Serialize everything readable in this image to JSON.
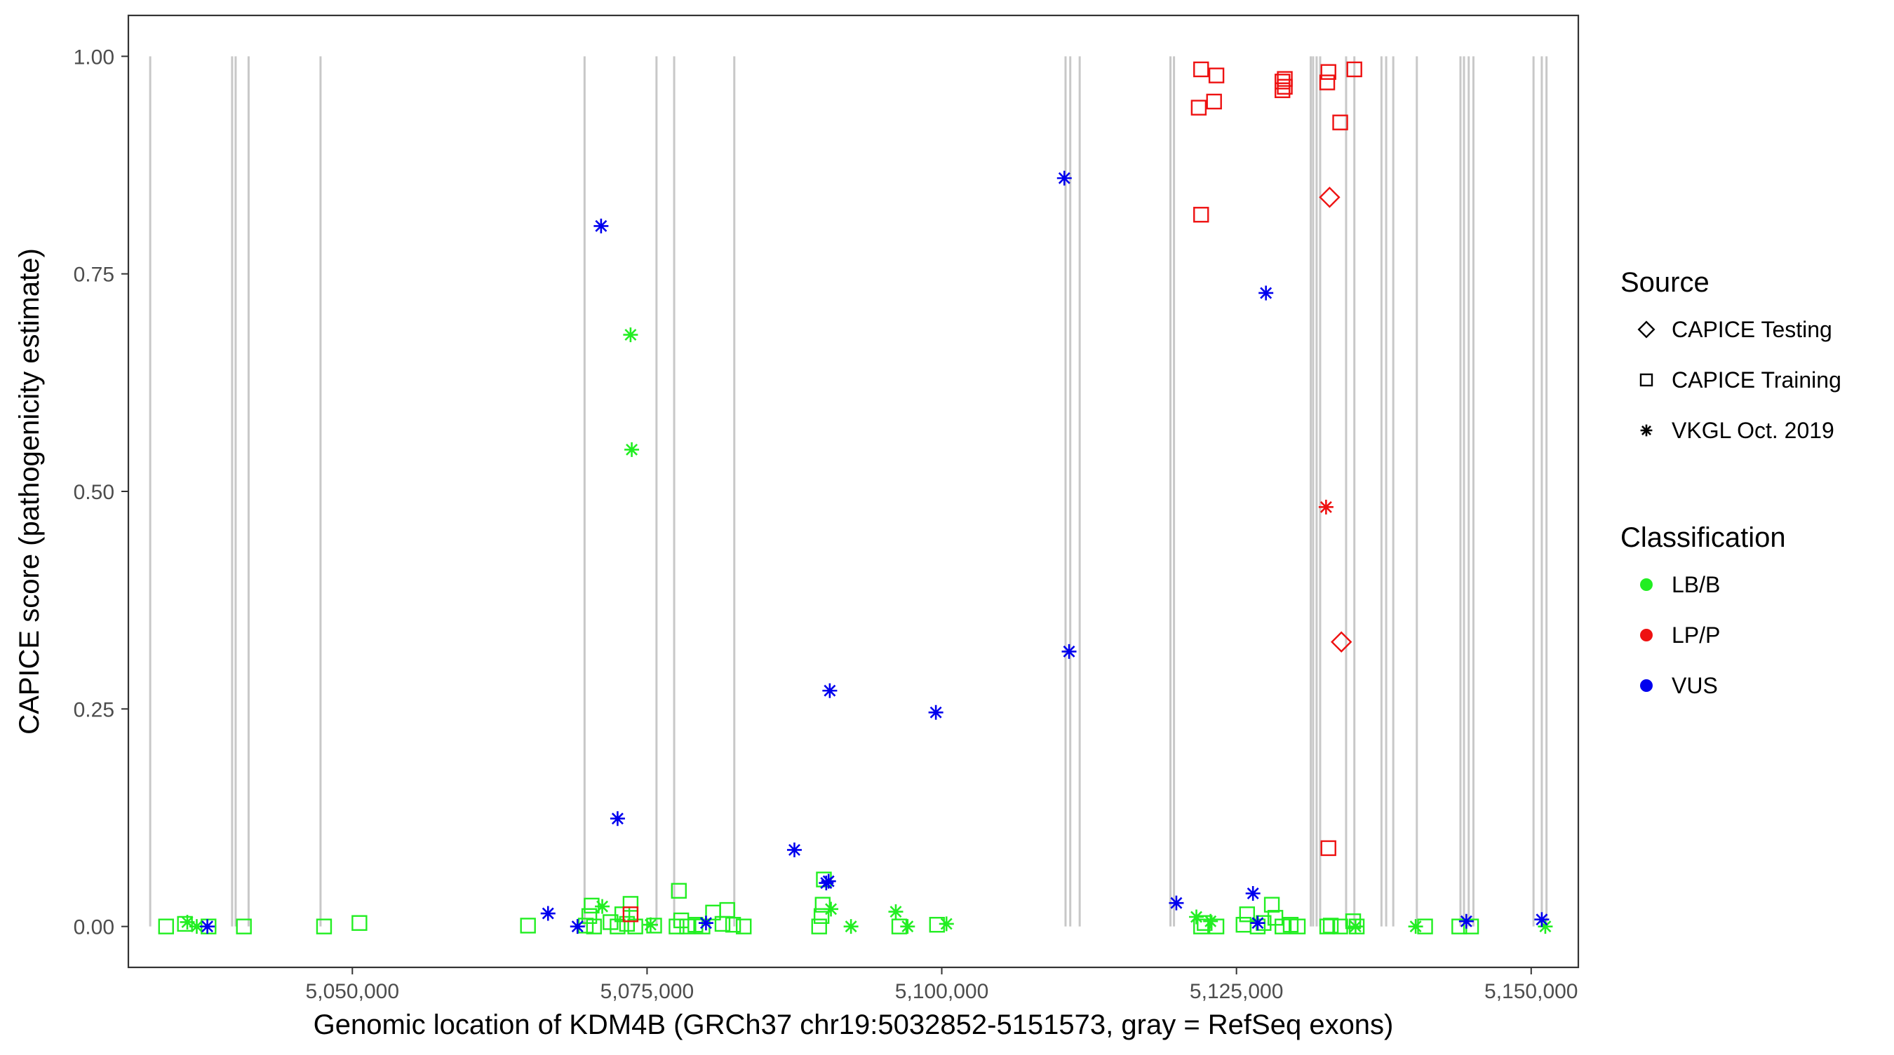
{
  "chart_data": {
    "type": "scatter",
    "xlabel": "Genomic location of KDM4B (GRCh37 chr19:5032852-5151573, gray = RefSeq exons)",
    "ylabel": "CAPICE score (pathogenicity estimate)",
    "xlim": [
      5031000,
      5154000
    ],
    "ylim": [
      -0.047,
      1.047
    ],
    "grid": false,
    "x_ticks": [
      {
        "value": 5050000,
        "label": "5,050,000"
      },
      {
        "value": 5075000,
        "label": "5,075,000"
      },
      {
        "value": 5100000,
        "label": "5,100,000"
      },
      {
        "value": 5125000,
        "label": "5,125,000"
      },
      {
        "value": 5150000,
        "label": "5,150,000"
      }
    ],
    "y_ticks": [
      {
        "value": 0.0,
        "label": "0.00"
      },
      {
        "value": 0.25,
        "label": "0.25"
      },
      {
        "value": 0.5,
        "label": "0.50"
      },
      {
        "value": 0.75,
        "label": "0.75"
      },
      {
        "value": 1.0,
        "label": "1.00"
      }
    ],
    "exon_lines": [
      5032852,
      5039800,
      5040100,
      5041200,
      5047300,
      5069700,
      5075800,
      5077300,
      5082400,
      5110500,
      5110900,
      5111700,
      5119400,
      5119700,
      5131300,
      5131500,
      5131800,
      5132100,
      5134300,
      5135000,
      5137300,
      5137700,
      5138300,
      5140300,
      5144000,
      5144300,
      5144700,
      5145100,
      5150200,
      5150900,
      5151300
    ],
    "exon_color": "#c8c8c8",
    "legend": {
      "position": "right",
      "source_title": "Source",
      "source_items": [
        {
          "label": "CAPICE Testing",
          "shape": "diamond"
        },
        {
          "label": "CAPICE Training",
          "shape": "square"
        },
        {
          "label": "VKGL Oct. 2019",
          "shape": "star"
        }
      ],
      "class_title": "Classification",
      "class_items": [
        {
          "label": "LB/B",
          "color": "#22ee22"
        },
        {
          "label": "LP/P",
          "color": "#ee1111"
        },
        {
          "label": "VUS",
          "color": "#0000ee"
        }
      ]
    },
    "series": [
      {
        "source": "CAPICE Training",
        "classification": "LB/B",
        "points": [
          [
            5034200,
            0.0
          ],
          [
            5035800,
            0.003
          ],
          [
            5037800,
            0.0
          ],
          [
            5040800,
            0.0
          ],
          [
            5047600,
            0.0
          ],
          [
            5050600,
            0.004
          ],
          [
            5064900,
            0.001
          ],
          [
            5069800,
            0.001
          ],
          [
            5070100,
            0.012
          ],
          [
            5070300,
            0.024
          ],
          [
            5070500,
            0.0
          ],
          [
            5071900,
            0.005
          ],
          [
            5072500,
            0.0
          ],
          [
            5072900,
            0.014
          ],
          [
            5073300,
            0.003
          ],
          [
            5073600,
            0.026
          ],
          [
            5074000,
            0.0
          ],
          [
            5075600,
            0.001
          ],
          [
            5077500,
            0.0
          ],
          [
            5077700,
            0.041
          ],
          [
            5077900,
            0.007
          ],
          [
            5078400,
            0.0
          ],
          [
            5079100,
            0.002
          ],
          [
            5079700,
            0.0
          ],
          [
            5080600,
            0.016
          ],
          [
            5081400,
            0.003
          ],
          [
            5081800,
            0.019
          ],
          [
            5082300,
            0.002
          ],
          [
            5083200,
            0.0
          ],
          [
            5089600,
            0.0
          ],
          [
            5089800,
            0.012
          ],
          [
            5089900,
            0.025
          ],
          [
            5090000,
            0.054
          ],
          [
            5096400,
            0.0
          ],
          [
            5099600,
            0.002
          ],
          [
            5122000,
            0.0
          ],
          [
            5122300,
            0.004
          ],
          [
            5123300,
            0.0
          ],
          [
            5125600,
            0.002
          ],
          [
            5125900,
            0.014
          ],
          [
            5126800,
            0.0
          ],
          [
            5127300,
            0.004
          ],
          [
            5128000,
            0.025
          ],
          [
            5128300,
            0.01
          ],
          [
            5128900,
            0.0
          ],
          [
            5129600,
            0.002
          ],
          [
            5130200,
            0.0
          ],
          [
            5132700,
            0.0
          ],
          [
            5133000,
            0.001
          ],
          [
            5133800,
            0.0
          ],
          [
            5134900,
            0.006
          ],
          [
            5135200,
            0.0
          ],
          [
            5141000,
            0.0
          ],
          [
            5143900,
            0.0
          ],
          [
            5144900,
            0.0
          ]
        ]
      },
      {
        "source": "CAPICE Training",
        "classification": "LP/P",
        "points": [
          [
            5073600,
            0.014
          ],
          [
            5121800,
            0.941
          ],
          [
            5122000,
            0.985
          ],
          [
            5122000,
            0.818
          ],
          [
            5123100,
            0.948
          ],
          [
            5123300,
            0.978
          ],
          [
            5128900,
            0.971
          ],
          [
            5128900,
            0.961
          ],
          [
            5129100,
            0.974
          ],
          [
            5129100,
            0.965
          ],
          [
            5132700,
            0.97
          ],
          [
            5132800,
            0.982
          ],
          [
            5132800,
            0.09
          ],
          [
            5133800,
            0.924
          ],
          [
            5135000,
            0.985
          ]
        ]
      },
      {
        "source": "CAPICE Testing",
        "classification": "LP/P",
        "points": [
          [
            5132900,
            0.838
          ],
          [
            5133900,
            0.327
          ]
        ]
      },
      {
        "source": "VKGL Oct. 2019",
        "classification": "LB/B",
        "points": [
          [
            5036000,
            0.005
          ],
          [
            5036800,
            0.0
          ],
          [
            5071200,
            0.023
          ],
          [
            5073600,
            0.68
          ],
          [
            5073700,
            0.548
          ],
          [
            5075300,
            0.002
          ],
          [
            5090600,
            0.02
          ],
          [
            5092300,
            0.0
          ],
          [
            5096100,
            0.017
          ],
          [
            5097100,
            0.0
          ],
          [
            5100400,
            0.003
          ],
          [
            5121600,
            0.011
          ],
          [
            5122800,
            0.006
          ],
          [
            5135100,
            0.0
          ],
          [
            5140200,
            0.0
          ],
          [
            5151200,
            0.0
          ]
        ]
      },
      {
        "source": "VKGL Oct. 2019",
        "classification": "LP/P",
        "points": [
          [
            5132600,
            0.482
          ]
        ]
      },
      {
        "source": "VKGL Oct. 2019",
        "classification": "VUS",
        "points": [
          [
            5037700,
            0.0
          ],
          [
            5066600,
            0.015
          ],
          [
            5069100,
            0.0
          ],
          [
            5071100,
            0.805
          ],
          [
            5072500,
            0.124
          ],
          [
            5080000,
            0.004
          ],
          [
            5087500,
            0.088
          ],
          [
            5090200,
            0.05
          ],
          [
            5090400,
            0.052
          ],
          [
            5090500,
            0.271
          ],
          [
            5099500,
            0.246
          ],
          [
            5110400,
            0.86
          ],
          [
            5110800,
            0.316
          ],
          [
            5119900,
            0.027
          ],
          [
            5126400,
            0.038
          ],
          [
            5126800,
            0.004
          ],
          [
            5127500,
            0.728
          ],
          [
            5144500,
            0.006
          ],
          [
            5150900,
            0.008
          ]
        ]
      }
    ]
  }
}
